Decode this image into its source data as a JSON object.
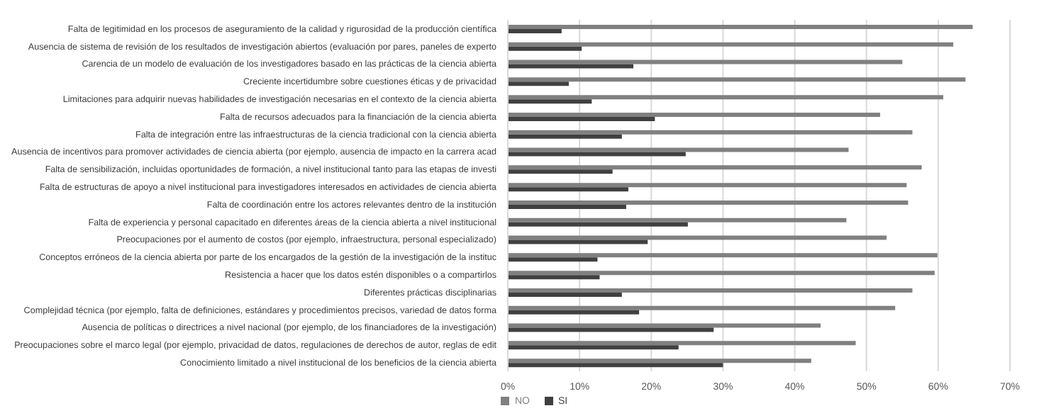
{
  "chart_data": {
    "type": "bar",
    "orientation": "horizontal",
    "categories": [
      "Falta de legitimidad en los procesos de aseguramiento de la calidad y rigurosidad de la producción científica",
      "Ausencia de sistema de revisión de los resultados de investigación abiertos (evaluación por pares, paneles de experto",
      "Carencia de un modelo de evaluación de los investigadores basado en las prácticas de la ciencia abierta",
      "Creciente incertidumbre sobre cuestiones éticas y de privacidad",
      "Limitaciones para adquirir nuevas habilidades de investigación necesarias en el contexto de la ciencia abierta",
      "Falta de recursos adecuados para la financiación de la ciencia abierta",
      "Falta de integración entre las infraestructuras de la ciencia tradicional con la ciencia abierta",
      "Ausencia de incentivos para promover actividades de ciencia abierta (por ejemplo, ausencia de impacto en la carrera acad",
      "Falta de sensibilización, incluidas oportunidades de formación, a nivel institucional tanto para las etapas de investi",
      "Falta de estructuras de apoyo a nivel institucional para investigadores interesados en actividades de ciencia abierta",
      "Falta de coordinación entre los actores relevantes dentro de la institución",
      "Falta de experiencia y personal capacitado en diferentes áreas de la ciencia abierta a nivel institucional",
      "Preocupaciones por el aumento de costos (por ejemplo, infraestructura, personal especializado)",
      "Conceptos erróneos de la ciencia abierta por parte de los encargados de la gestión de la investigación de la instituc",
      "Resistencia a hacer que los datos estén disponibles o a compartirlos",
      "Diferentes prácticas disciplinarias",
      "Complejidad técnica (por ejemplo, falta de definiciones, estándares y procedimientos precisos, variedad de datos forma",
      "Ausencia de políticas o directrices a nivel nacional (por ejemplo, de los financiadores de la investigación)",
      "Preocupaciones sobre el marco legal (por ejemplo, privacidad de datos, regulaciones de derechos de autor, reglas de edit",
      "Conocimiento limitado a nivel institucional de los beneficios de la ciencia abierta"
    ],
    "series": [
      {
        "name": "NO",
        "color": "#808080",
        "values": [
          64.8,
          62.1,
          55.0,
          63.8,
          60.7,
          51.9,
          56.4,
          47.5,
          57.7,
          55.6,
          55.8,
          47.2,
          52.8,
          59.9,
          59.5,
          56.4,
          54.0,
          43.6,
          48.5,
          42.3
        ]
      },
      {
        "name": "SI",
        "color": "#404040",
        "values": [
          7.5,
          10.3,
          17.5,
          8.5,
          11.7,
          20.5,
          15.9,
          24.8,
          14.6,
          16.8,
          16.5,
          25.1,
          19.5,
          12.5,
          12.8,
          15.9,
          18.3,
          28.7,
          23.8,
          30.0
        ]
      }
    ],
    "xlim": [
      0,
      70
    ],
    "xticks": [
      {
        "value": 0,
        "label": "0%"
      },
      {
        "value": 10,
        "label": "10%"
      },
      {
        "value": 20,
        "label": "20%"
      },
      {
        "value": 30,
        "label": "30%"
      },
      {
        "value": 40,
        "label": "40%"
      },
      {
        "value": 50,
        "label": "50%"
      },
      {
        "value": 60,
        "label": "60%"
      },
      {
        "value": 70,
        "label": "70%"
      }
    ],
    "grid": "x",
    "legend": "bottom left"
  }
}
